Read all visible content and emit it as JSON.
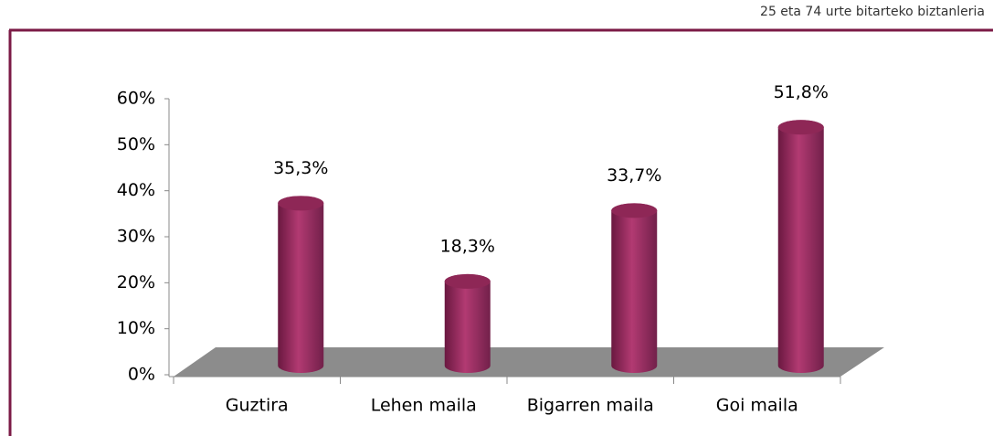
{
  "chart_data": {
    "type": "bar3d",
    "subtitle": "25 eta 74 urte bitarteko biztanleria",
    "categories": [
      "Guztira",
      "Lehen maila",
      "Bigarren maila",
      "Goi maila"
    ],
    "values": [
      35.3,
      18.3,
      33.7,
      51.8
    ],
    "value_labels": [
      "35,3%",
      "18,3%",
      "33,7%",
      "51,8%"
    ],
    "color": "#9b2d5e",
    "ylim": [
      0,
      60
    ],
    "yticks": [
      {
        "value": 0,
        "label": "0%"
      },
      {
        "value": 10,
        "label": "10%"
      },
      {
        "value": 20,
        "label": "20%"
      },
      {
        "value": 30,
        "label": "30%"
      },
      {
        "value": 40,
        "label": "40%"
      },
      {
        "value": 50,
        "label": "50%"
      },
      {
        "value": 60,
        "label": "60%"
      }
    ]
  }
}
